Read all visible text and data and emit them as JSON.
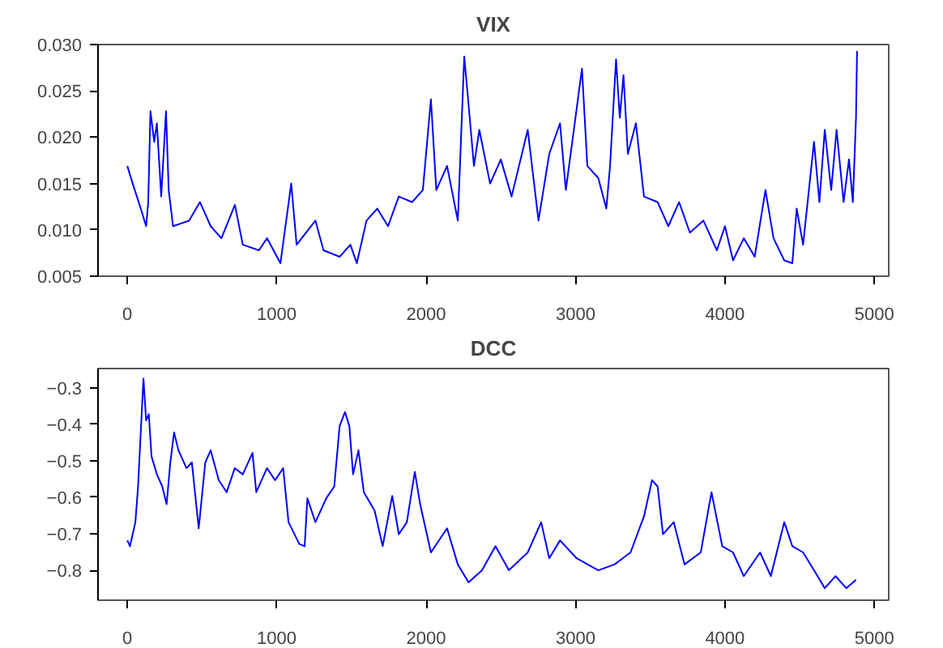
{
  "chart_data": [
    {
      "type": "line",
      "title": "VIX",
      "xlim": [
        -196,
        5096
      ],
      "ylim": [
        0.005,
        0.03
      ],
      "xticks": [
        0,
        1000,
        2000,
        3000,
        4000,
        5000
      ],
      "yticks": [
        {
          "value": 0.005,
          "label": "0.005"
        },
        {
          "value": 0.01,
          "label": "0.010"
        },
        {
          "value": 0.015,
          "label": "0.015"
        },
        {
          "value": 0.02,
          "label": "0.020"
        },
        {
          "value": 0.025,
          "label": "0.025"
        },
        {
          "value": 0.03,
          "label": "0.030"
        }
      ],
      "grid": false,
      "line_style": "solid",
      "series": [
        {
          "color": "#0000ff",
          "x": [
            0,
            36,
            90,
            126,
            140,
            155,
            180,
            198,
            227,
            259,
            277,
            306,
            414,
            486,
            558,
            630,
            720,
            773,
            881,
            935,
            1025,
            1097,
            1133,
            1259,
            1313,
            1421,
            1493,
            1536,
            1601,
            1673,
            1745,
            1817,
            1906,
            1978,
            2032,
            2068,
            2140,
            2212,
            2255,
            2277,
            2320,
            2356,
            2428,
            2500,
            2572,
            2680,
            2752,
            2824,
            2896,
            2935,
            3043,
            3079,
            3152,
            3206,
            3231,
            3271,
            3296,
            3321,
            3350,
            3404,
            3458,
            3549,
            3621,
            3693,
            3765,
            3856,
            3946,
            4000,
            4054,
            4126,
            4199,
            4271,
            4325,
            4397,
            4451,
            4480,
            4523,
            4596,
            4632,
            4668,
            4711,
            4747,
            4794,
            4830,
            4856,
            4877,
            4884
          ],
          "values": [
            0.0169,
            0.015,
            0.0123,
            0.0104,
            0.013,
            0.0228,
            0.0195,
            0.0215,
            0.0136,
            0.0228,
            0.0143,
            0.0104,
            0.011,
            0.013,
            0.0104,
            0.0091,
            0.0127,
            0.0084,
            0.0078,
            0.0091,
            0.0064,
            0.015,
            0.0084,
            0.011,
            0.0078,
            0.0071,
            0.0084,
            0.0064,
            0.011,
            0.0123,
            0.0104,
            0.0136,
            0.013,
            0.0143,
            0.0241,
            0.0143,
            0.0169,
            0.011,
            0.0287,
            0.0248,
            0.0169,
            0.0208,
            0.015,
            0.0176,
            0.0136,
            0.0208,
            0.011,
            0.0182,
            0.0215,
            0.0143,
            0.0274,
            0.0169,
            0.0156,
            0.0123,
            0.0169,
            0.0284,
            0.0221,
            0.0267,
            0.0182,
            0.0215,
            0.0136,
            0.013,
            0.0104,
            0.013,
            0.0097,
            0.011,
            0.0078,
            0.0104,
            0.0067,
            0.0091,
            0.0071,
            0.0143,
            0.0091,
            0.0067,
            0.0064,
            0.0123,
            0.0084,
            0.0195,
            0.013,
            0.0208,
            0.0143,
            0.0208,
            0.013,
            0.0176,
            0.013,
            0.0221,
            0.0293
          ]
        }
      ]
    },
    {
      "type": "line",
      "title": "DCC",
      "xlim": [
        -196,
        5096
      ],
      "ylim": [
        -0.882,
        -0.247
      ],
      "xticks": [
        0,
        1000,
        2000,
        3000,
        4000,
        5000
      ],
      "yticks": [
        {
          "value": -0.8,
          "label": "−0.8"
        },
        {
          "value": -0.7,
          "label": "−0.7"
        },
        {
          "value": -0.6,
          "label": "−0.6"
        },
        {
          "value": -0.5,
          "label": "−0.5"
        },
        {
          "value": -0.4,
          "label": "−0.4"
        },
        {
          "value": -0.3,
          "label": "−0.3"
        }
      ],
      "grid": false,
      "line_style": "solid",
      "series": [
        {
          "color": "#0000ff",
          "x": [
            0,
            18,
            54,
            72,
            90,
            108,
            126,
            144,
            162,
            198,
            234,
            263,
            288,
            313,
            342,
            396,
            432,
            478,
            522,
            558,
            612,
            665,
            719,
            773,
            838,
            863,
            935,
            989,
            1043,
            1079,
            1151,
            1187,
            1205,
            1259,
            1331,
            1385,
            1421,
            1457,
            1486,
            1511,
            1547,
            1583,
            1655,
            1709,
            1773,
            1817,
            1871,
            1924,
            1960,
            2032,
            2140,
            2212,
            2284,
            2374,
            2464,
            2554,
            2680,
            2770,
            2824,
            2896,
            3007,
            3152,
            3260,
            3368,
            3458,
            3512,
            3549,
            3585,
            3657,
            3729,
            3838,
            3910,
            3982,
            4054,
            4126,
            4235,
            4307,
            4397,
            4451,
            4523,
            4596,
            4668,
            4740,
            4812,
            4877
          ],
          "values": [
            -0.718,
            -0.734,
            -0.668,
            -0.57,
            -0.422,
            -0.274,
            -0.389,
            -0.372,
            -0.488,
            -0.537,
            -0.57,
            -0.619,
            -0.504,
            -0.422,
            -0.471,
            -0.52,
            -0.504,
            -0.685,
            -0.504,
            -0.471,
            -0.553,
            -0.586,
            -0.52,
            -0.537,
            -0.478,
            -0.586,
            -0.52,
            -0.553,
            -0.52,
            -0.668,
            -0.728,
            -0.734,
            -0.603,
            -0.668,
            -0.603,
            -0.57,
            -0.405,
            -0.366,
            -0.405,
            -0.537,
            -0.471,
            -0.586,
            -0.636,
            -0.734,
            -0.596,
            -0.701,
            -0.668,
            -0.53,
            -0.619,
            -0.751,
            -0.685,
            -0.784,
            -0.833,
            -0.8,
            -0.734,
            -0.8,
            -0.751,
            -0.668,
            -0.767,
            -0.718,
            -0.767,
            -0.8,
            -0.784,
            -0.751,
            -0.652,
            -0.553,
            -0.57,
            -0.701,
            -0.668,
            -0.784,
            -0.751,
            -0.586,
            -0.734,
            -0.751,
            -0.816,
            -0.751,
            -0.816,
            -0.668,
            -0.734,
            -0.751,
            -0.8,
            -0.849,
            -0.816,
            -0.849,
            -0.826
          ]
        }
      ]
    }
  ]
}
